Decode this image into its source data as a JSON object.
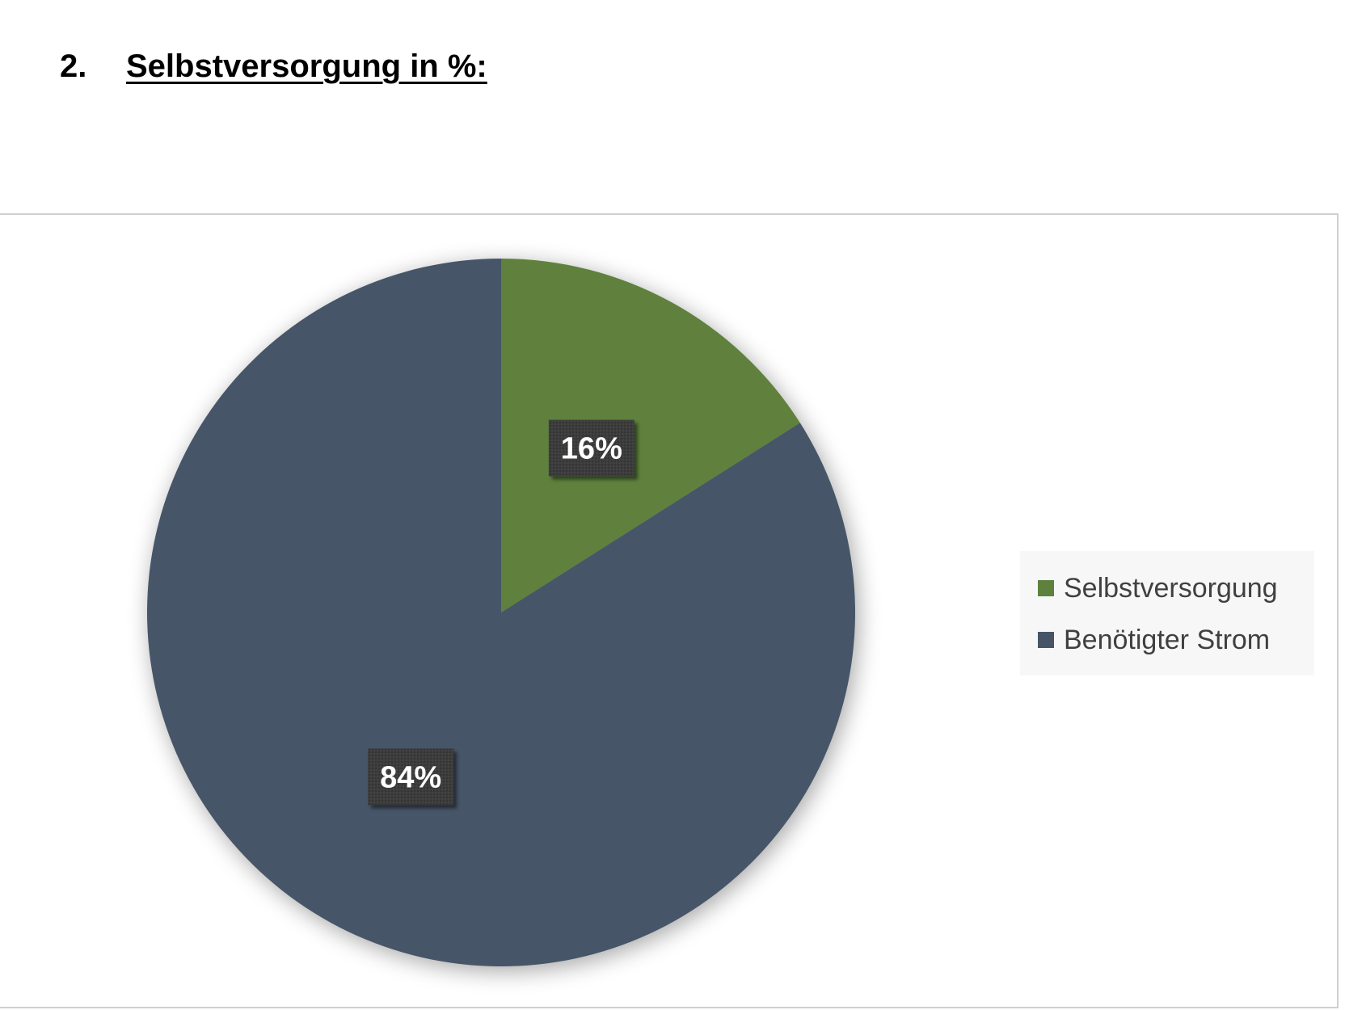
{
  "heading": {
    "number": "2.",
    "text": "Selbstversorgung in %:"
  },
  "chart_data": {
    "type": "pie",
    "title": "",
    "categories": [
      "Selbstversorgung",
      "Benötigter Strom"
    ],
    "values": [
      16,
      84
    ],
    "data_labels": [
      "16%",
      "84%"
    ],
    "colors": [
      "#5e813e",
      "#475468"
    ],
    "legend": {
      "placement": "right",
      "entries": [
        "Selbstversorgung",
        "Benötigter Strom"
      ]
    }
  }
}
